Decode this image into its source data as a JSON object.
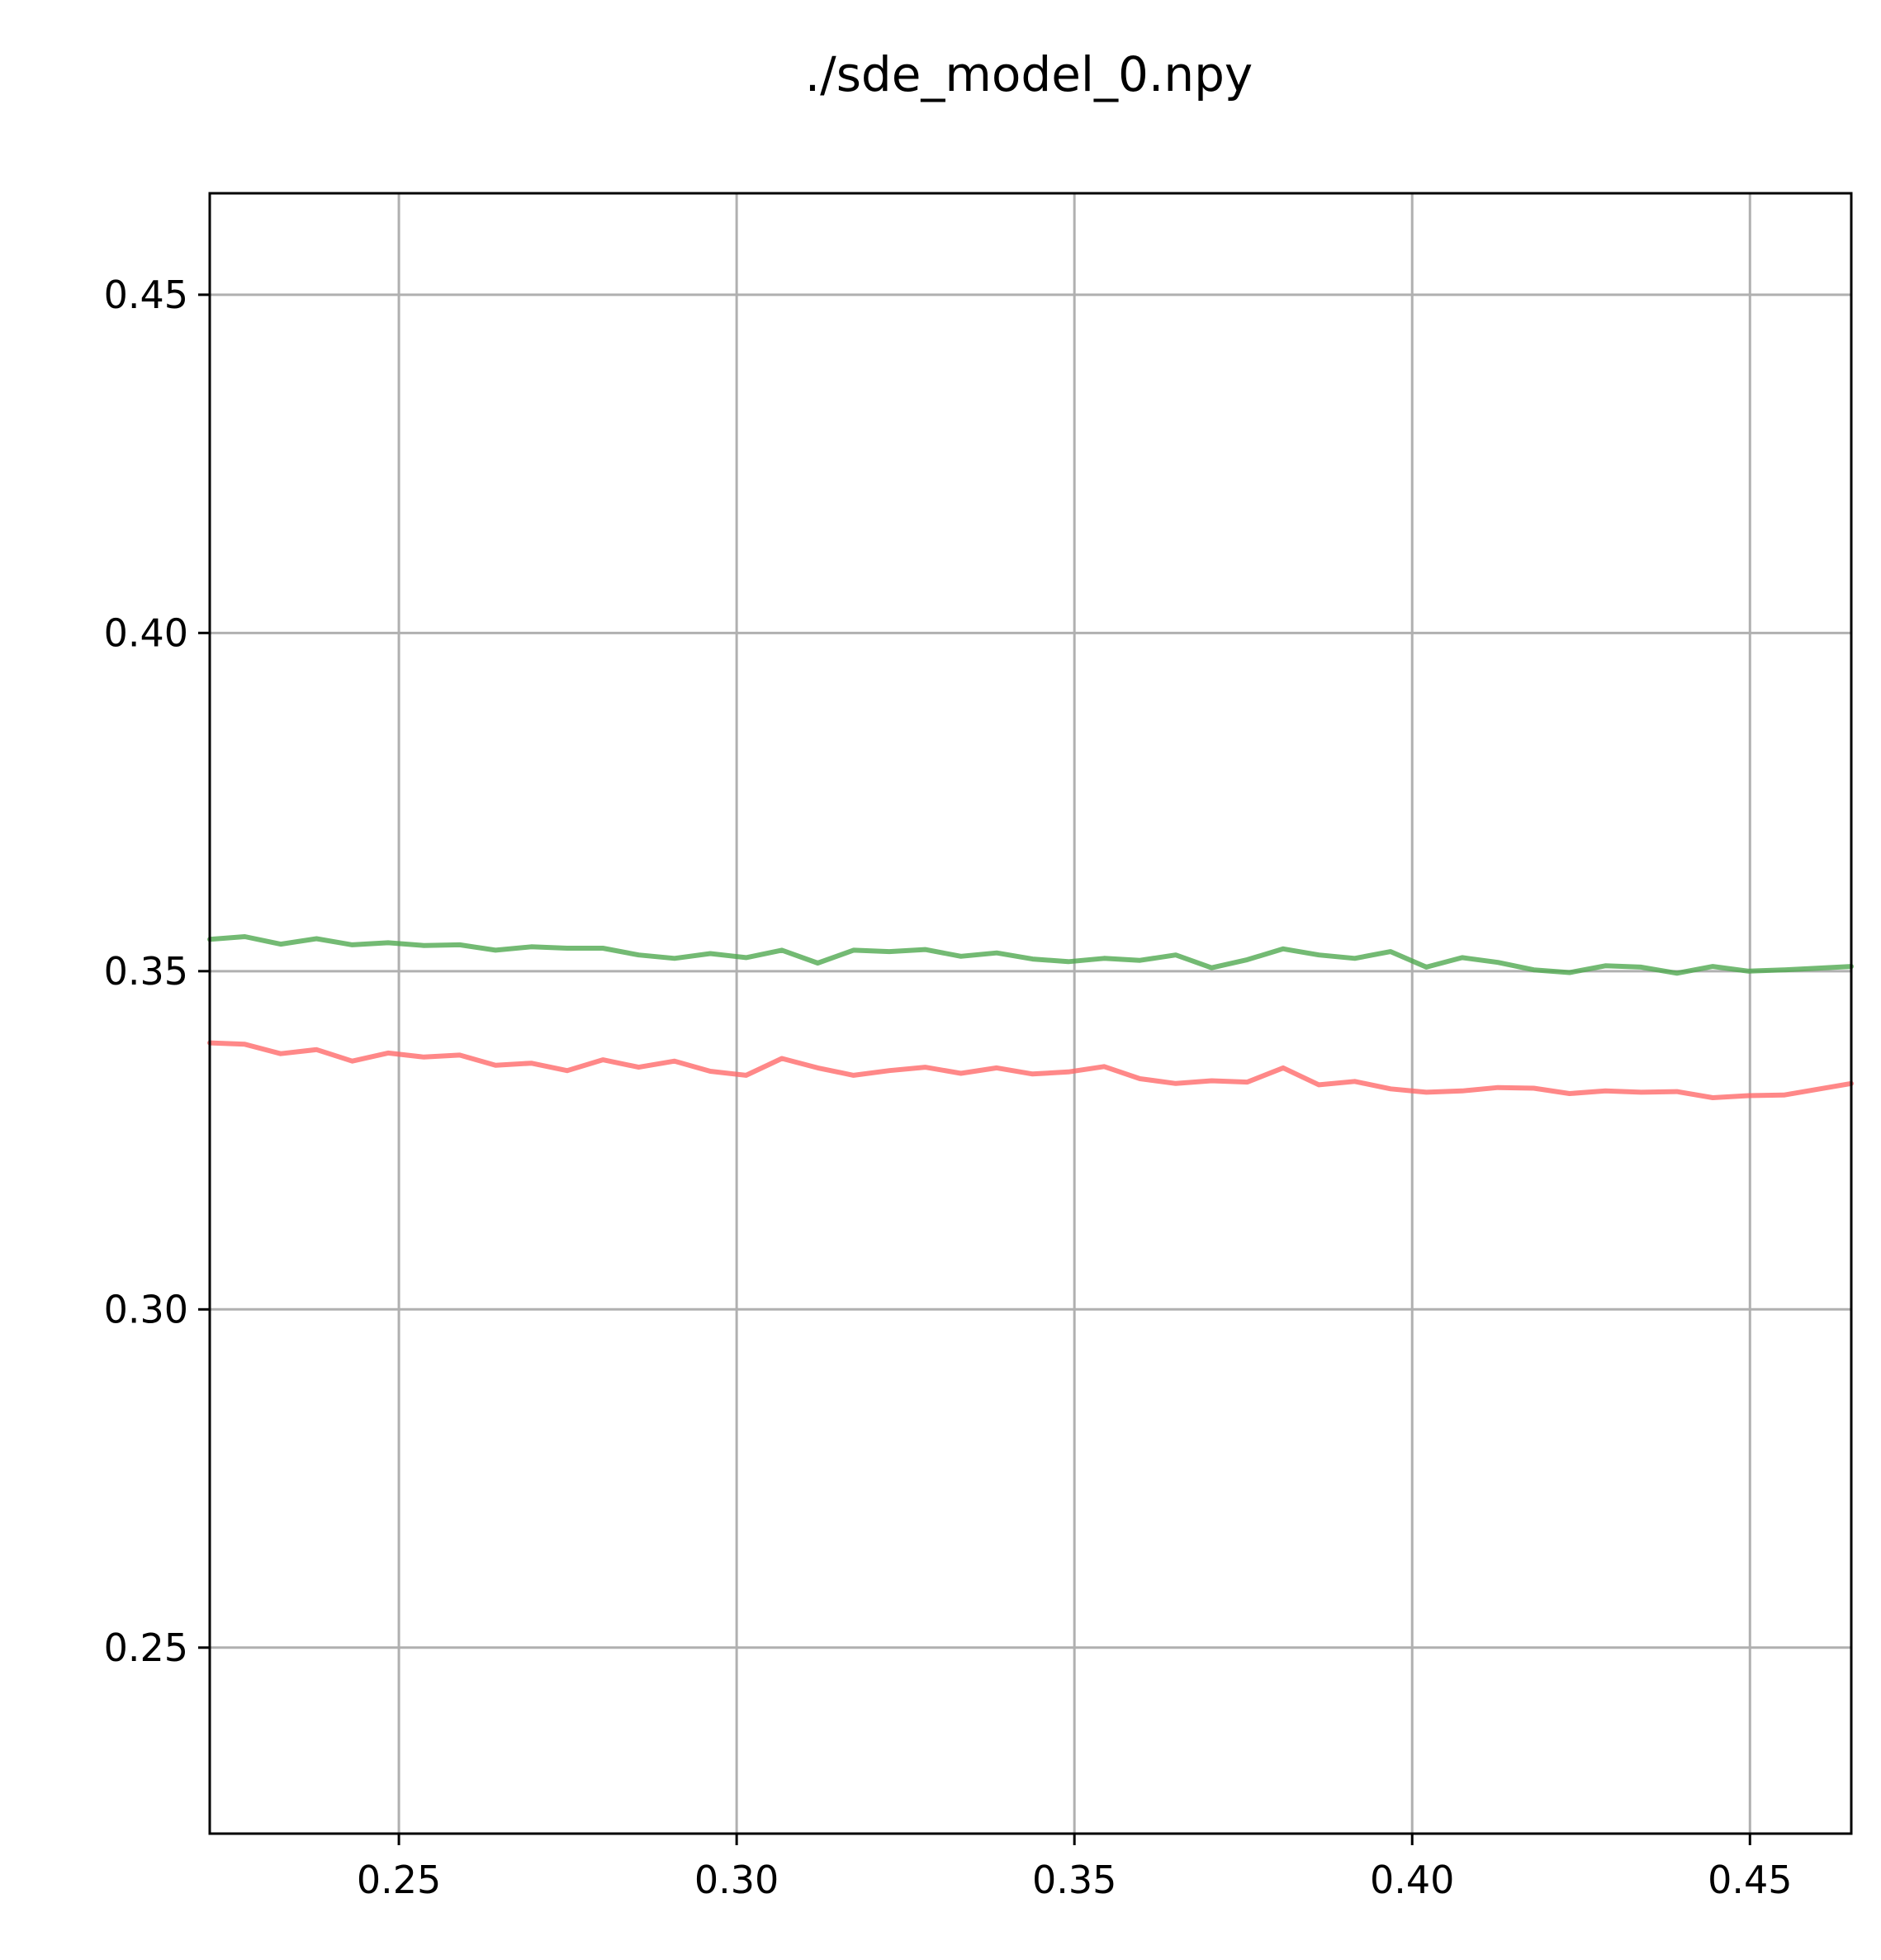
{
  "chart_data": {
    "type": "line",
    "title": "./sde_model_0.npy",
    "xlabel": "",
    "ylabel": "",
    "xlim": [
      0.222,
      0.465
    ],
    "ylim": [
      0.2225,
      0.465
    ],
    "x_ticks": [
      0.25,
      0.3,
      0.35,
      0.4,
      0.45
    ],
    "y_ticks": [
      0.25,
      0.3,
      0.35,
      0.4,
      0.45
    ],
    "x_tick_labels": [
      "0.25",
      "0.30",
      "0.35",
      "0.40",
      "0.45"
    ],
    "y_tick_labels": [
      "0.25",
      "0.30",
      "0.35",
      "0.40",
      "0.45"
    ],
    "grid": true,
    "legend": "none",
    "series": [
      {
        "color": "#4ca64c",
        "x": [
          0.222,
          0.2272,
          0.2325,
          0.2378,
          0.2431,
          0.2484,
          0.2537,
          0.259,
          0.2643,
          0.2696,
          0.2749,
          0.2802,
          0.2855,
          0.2908,
          0.2961,
          0.3014,
          0.3067,
          0.312,
          0.3173,
          0.3226,
          0.3279,
          0.3332,
          0.3385,
          0.3438,
          0.3491,
          0.3544,
          0.3597,
          0.365,
          0.3703,
          0.3756,
          0.3809,
          0.3862,
          0.3915,
          0.3968,
          0.4021,
          0.4074,
          0.4127,
          0.418,
          0.4233,
          0.4286,
          0.4339,
          0.4392,
          0.4445,
          0.4498,
          0.4551,
          0.465
        ],
        "y": [
          0.3547,
          0.3551,
          0.354,
          0.3548,
          0.3539,
          0.3542,
          0.3538,
          0.3539,
          0.3531,
          0.3536,
          0.3534,
          0.3534,
          0.3524,
          0.3519,
          0.3526,
          0.352,
          0.3531,
          0.3512,
          0.3531,
          0.3529,
          0.3532,
          0.3522,
          0.3527,
          0.3518,
          0.3514,
          0.3519,
          0.3516,
          0.3524,
          0.3505,
          0.3517,
          0.3533,
          0.3524,
          0.3519,
          0.3529,
          0.3506,
          0.352,
          0.3513,
          0.3502,
          0.3498,
          0.3508,
          0.3506,
          0.3497,
          0.3507,
          0.35,
          0.3502,
          0.3507
        ]
      },
      {
        "color": "#ff6666",
        "x": [
          0.222,
          0.2272,
          0.2325,
          0.2378,
          0.2431,
          0.2484,
          0.2537,
          0.259,
          0.2643,
          0.2696,
          0.2749,
          0.2802,
          0.2855,
          0.2908,
          0.2961,
          0.3014,
          0.3067,
          0.312,
          0.3173,
          0.3226,
          0.3279,
          0.3332,
          0.3385,
          0.3438,
          0.3491,
          0.3544,
          0.3597,
          0.365,
          0.3703,
          0.3756,
          0.3809,
          0.3862,
          0.3915,
          0.3968,
          0.4021,
          0.4074,
          0.4127,
          0.418,
          0.4233,
          0.4286,
          0.4339,
          0.4392,
          0.4445,
          0.4498,
          0.4551,
          0.465
        ],
        "y": [
          0.3394,
          0.3392,
          0.3378,
          0.3384,
          0.3367,
          0.3379,
          0.3373,
          0.3376,
          0.3361,
          0.3364,
          0.3353,
          0.3369,
          0.3358,
          0.3367,
          0.3352,
          0.3346,
          0.3371,
          0.3357,
          0.3346,
          0.3353,
          0.3358,
          0.3349,
          0.3357,
          0.3348,
          0.3351,
          0.3359,
          0.3341,
          0.3334,
          0.3338,
          0.3336,
          0.3357,
          0.3332,
          0.3337,
          0.3326,
          0.3321,
          0.3323,
          0.3328,
          0.3327,
          0.3319,
          0.3323,
          0.3321,
          0.3322,
          0.3313,
          0.3316,
          0.3317,
          0.3334
        ]
      }
    ]
  }
}
